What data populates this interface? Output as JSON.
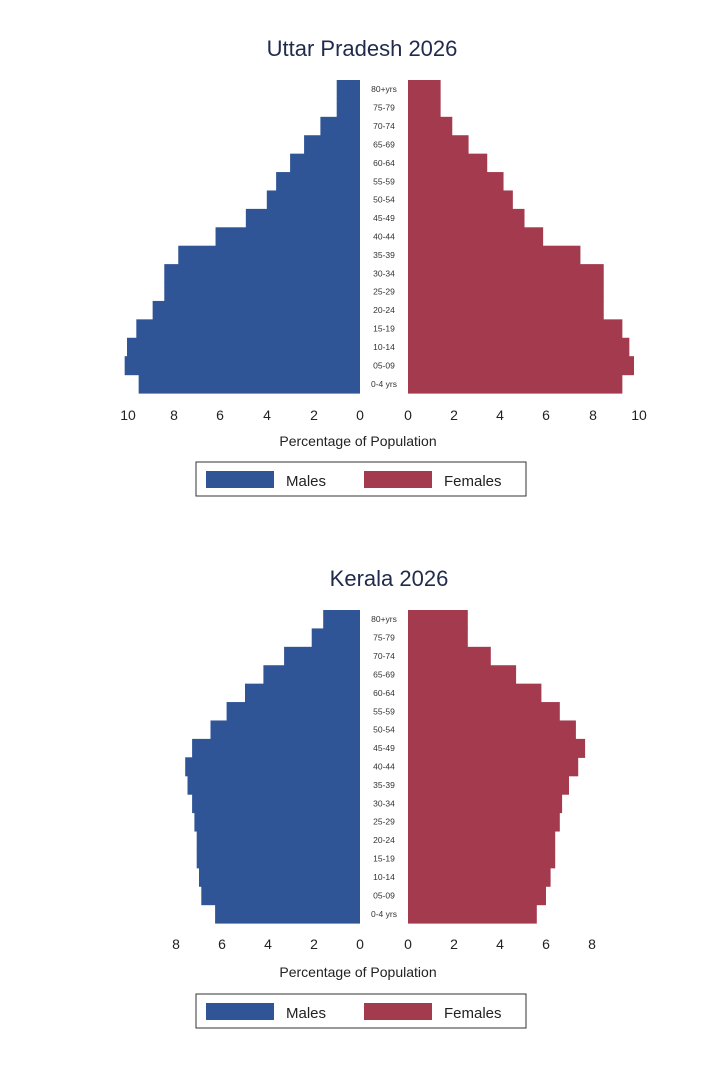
{
  "colors": {
    "males": "#2f5597",
    "females": "#a33a4e",
    "frame": "#333333"
  },
  "chart_data": [
    {
      "type": "bar",
      "orientation": "population-pyramid",
      "title": "Uttar Pradesh 2026",
      "xlabel": "Percentage of Population",
      "categories": [
        "80+yrs",
        "75-79",
        "70-74",
        "65-69",
        "60-64",
        "55-59",
        "50-54",
        "45-49",
        "40-44",
        "35-39",
        "30-34",
        "25-29",
        "20-24",
        "15-19",
        "10-14",
        "05-09",
        "0-4 yrs"
      ],
      "xlim": [
        0,
        10
      ],
      "ticks_left": [
        "10",
        "8",
        "6",
        "4",
        "2",
        "0"
      ],
      "ticks_right": [
        "0",
        "2",
        "4",
        "6",
        "8",
        "10"
      ],
      "series": [
        {
          "name": "Males",
          "values": [
            1.0,
            1.0,
            1.7,
            2.4,
            3.0,
            3.6,
            4.0,
            4.9,
            6.2,
            7.8,
            8.4,
            8.4,
            8.9,
            9.6,
            10.0,
            10.1,
            9.5
          ]
        },
        {
          "name": "Females",
          "values": [
            1.4,
            1.4,
            1.9,
            2.6,
            3.4,
            4.1,
            4.5,
            5.0,
            5.8,
            7.4,
            8.4,
            8.4,
            8.4,
            9.2,
            9.5,
            9.7,
            9.2
          ]
        }
      ],
      "legend": {
        "position": "bottom",
        "items": [
          "Males",
          "Females"
        ]
      }
    },
    {
      "type": "bar",
      "orientation": "population-pyramid",
      "title": "Kerala 2026",
      "xlabel": "Percentage of Population",
      "categories": [
        "80+yrs",
        "75-79",
        "70-74",
        "65-69",
        "60-64",
        "55-59",
        "50-54",
        "45-49",
        "40-44",
        "35-39",
        "30-34",
        "25-29",
        "20-24",
        "15-19",
        "10-14",
        "05-09",
        "0-4 yrs"
      ],
      "xlim": [
        0,
        8
      ],
      "ticks_left": [
        "8",
        "6",
        "4",
        "2",
        "0"
      ],
      "ticks_right": [
        "0",
        "2",
        "4",
        "6",
        "8"
      ],
      "series": [
        {
          "name": "Males",
          "values": [
            1.6,
            2.1,
            3.3,
            4.2,
            5.0,
            5.8,
            6.5,
            7.3,
            7.6,
            7.5,
            7.3,
            7.2,
            7.1,
            7.1,
            7.0,
            6.9,
            6.3
          ]
        },
        {
          "name": "Females",
          "values": [
            2.6,
            2.6,
            3.6,
            4.7,
            5.8,
            6.6,
            7.3,
            7.7,
            7.4,
            7.0,
            6.7,
            6.6,
            6.4,
            6.4,
            6.2,
            6.0,
            5.6
          ]
        }
      ],
      "legend": {
        "position": "bottom",
        "items": [
          "Males",
          "Females"
        ]
      }
    }
  ]
}
